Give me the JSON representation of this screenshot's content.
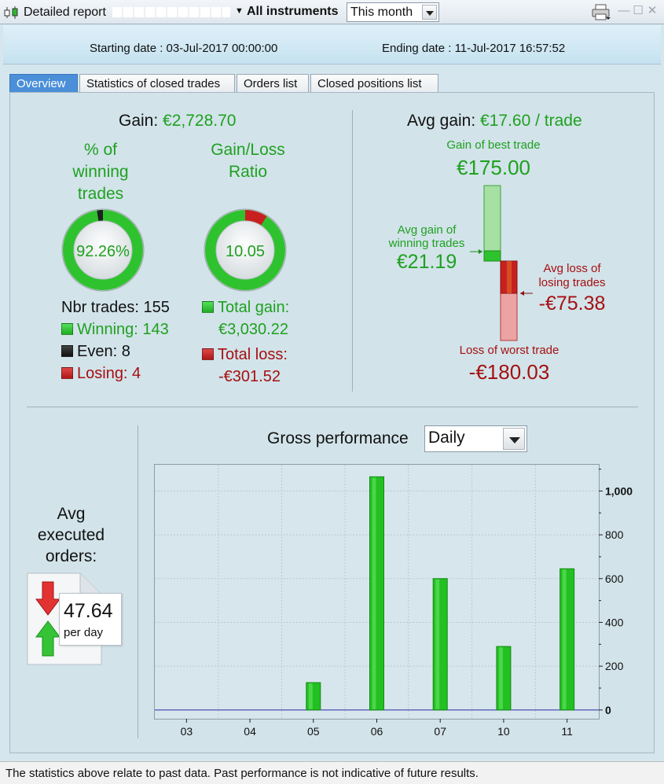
{
  "window": {
    "title": "Detailed report",
    "instruments_label": "All instruments",
    "period_value": "This month"
  },
  "dates": {
    "starting": "Starting date : 03-Jul-2017 00:00:00",
    "ending": "Ending date : 11-Jul-2017 16:57:52"
  },
  "tabs": [
    {
      "label": "Overview",
      "active": true
    },
    {
      "label": "Statistics of closed trades",
      "active": false
    },
    {
      "label": "Orders list",
      "active": false
    },
    {
      "label": "Closed positions list",
      "active": false
    }
  ],
  "overview": {
    "gain_label": "Gain:",
    "gain_value": "€2,728.70",
    "winning_title_1": "% of",
    "winning_title_2": "winning",
    "winning_title_3": "trades",
    "winning_pct": "92.26%",
    "winning_fraction": 0.9226,
    "ratio_title_1": "Gain/Loss",
    "ratio_title_2": "Ratio",
    "ratio_value": "10.05",
    "ratio_loss_fraction": 0.0905,
    "nbr_trades": "Nbr trades: 155",
    "winning": "Winning: 143",
    "even": "Even: 8",
    "losing": "Losing: 4",
    "total_gain_label": "Total gain:",
    "total_gain_value": "€3,030.22",
    "total_loss_label": "Total loss:",
    "total_loss_value": "-€301.52",
    "avg_gain_label": "Avg gain:",
    "avg_gain_value": "€17.60 / trade",
    "best_trade_label": "Gain of best trade",
    "best_trade_value": "€175.00",
    "avg_win_label_1": "Avg gain of",
    "avg_win_label_2": "winning trades",
    "avg_win_value": "€21.19",
    "avg_loss_label_1": "Avg loss of",
    "avg_loss_label_2": "losing trades",
    "avg_loss_value": "-€75.38",
    "worst_trade_label": "Loss of worst trade",
    "worst_trade_value": "-€180.03"
  },
  "orders": {
    "title_1": "Avg",
    "title_2": "executed",
    "title_3": "orders:",
    "value": "47.64",
    "unit": "per day"
  },
  "performance": {
    "title": "Gross performance",
    "granularity": "Daily"
  },
  "chart_data": {
    "type": "bar",
    "categories": [
      "03",
      "04",
      "05",
      "06",
      "07",
      "10",
      "11"
    ],
    "values": [
      0,
      0,
      125,
      1065,
      600,
      290,
      645
    ],
    "ylim": [
      -40,
      1120
    ],
    "yticks": [
      0,
      200,
      400,
      600,
      800,
      1000
    ],
    "ytick_labels": [
      "0",
      "200",
      "400",
      "600",
      "800",
      "1,000"
    ],
    "grid": true,
    "bar_color": "#22c022"
  },
  "status": {
    "text": "The statistics above relate to past data. Past performance is not indicative of future results."
  }
}
